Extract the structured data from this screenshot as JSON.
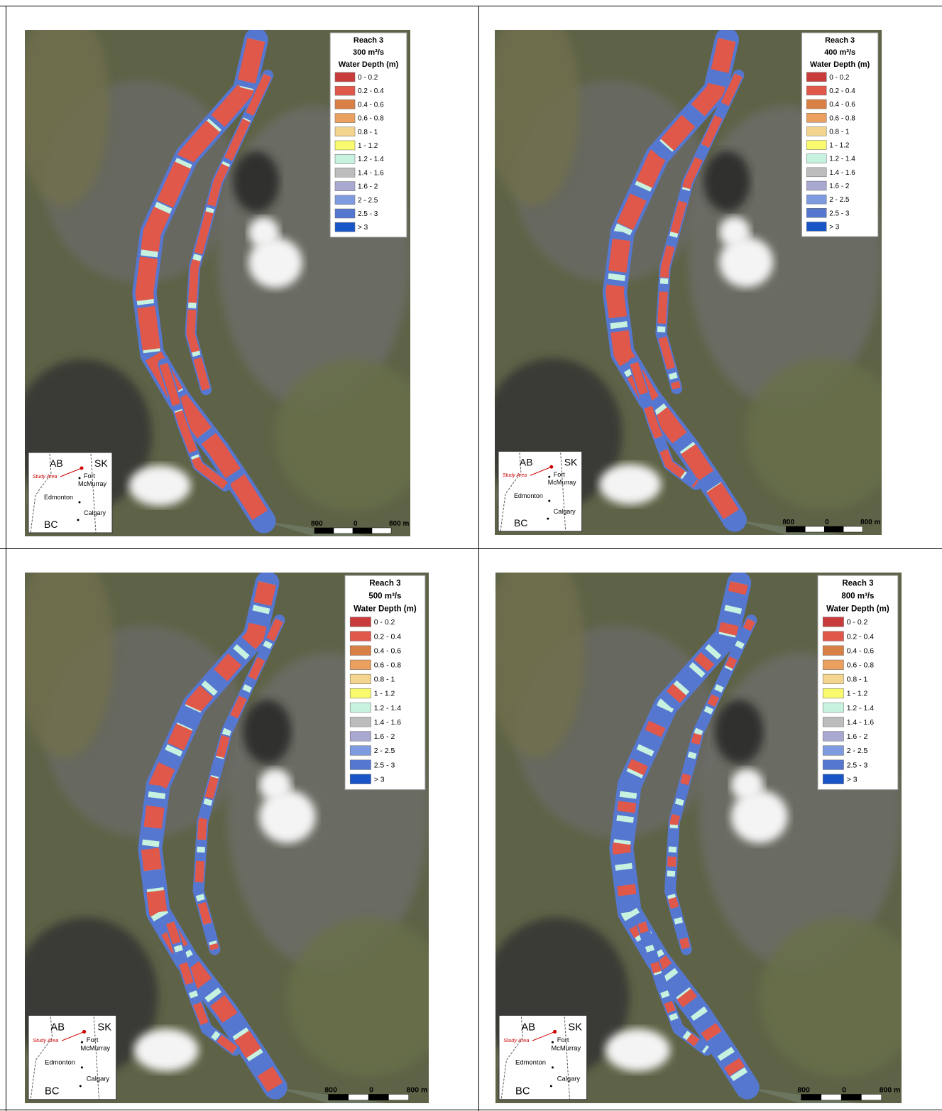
{
  "panels": [
    {
      "reach": "Reach 3",
      "flow": "300 m³/s",
      "legend_title": "Water Depth (m)"
    },
    {
      "reach": "Reach 3",
      "flow": "400 m³/s",
      "legend_title": "Water Depth (m)"
    },
    {
      "reach": "Reach 3",
      "flow": "500 m³/s",
      "legend_title": "Water Depth (m)"
    },
    {
      "reach": "Reach 3",
      "flow": "800 m³/s",
      "legend_title": "Water Depth (m)"
    }
  ],
  "legend": [
    {
      "label": "0 - 0.2",
      "color": "#c83c3c"
    },
    {
      "label": "0.2 - 0.4",
      "color": "#e0584a"
    },
    {
      "label": "0.4 - 0.6",
      "color": "#d98046"
    },
    {
      "label": "0.6 - 0.8",
      "color": "#eba060"
    },
    {
      "label": "0.8 - 1",
      "color": "#f3d58f"
    },
    {
      "label": "1 - 1.2",
      "color": "#fafa6e"
    },
    {
      "label": "1.2 - 1.4",
      "color": "#c8f2e0"
    },
    {
      "label": "1.4 - 1.6",
      "color": "#bdbdbd"
    },
    {
      "label": "1.6 - 2",
      "color": "#a8a8d0"
    },
    {
      "label": "2 - 2.5",
      "color": "#7f9be0"
    },
    {
      "label": "2.5 - 3",
      "color": "#5577d0"
    },
    {
      "label": "> 3",
      "color": "#1a55c8"
    }
  ],
  "inset": {
    "ab": "AB",
    "sk": "SK",
    "study_area": "Study Area",
    "fort": "Fort",
    "mcmurray": "McMurray",
    "edmonton": "Edmonton",
    "calgary": "Calgary",
    "bc": "BC"
  },
  "scale_bar": {
    "left": "800",
    "zero": "0",
    "right": "800 m"
  }
}
